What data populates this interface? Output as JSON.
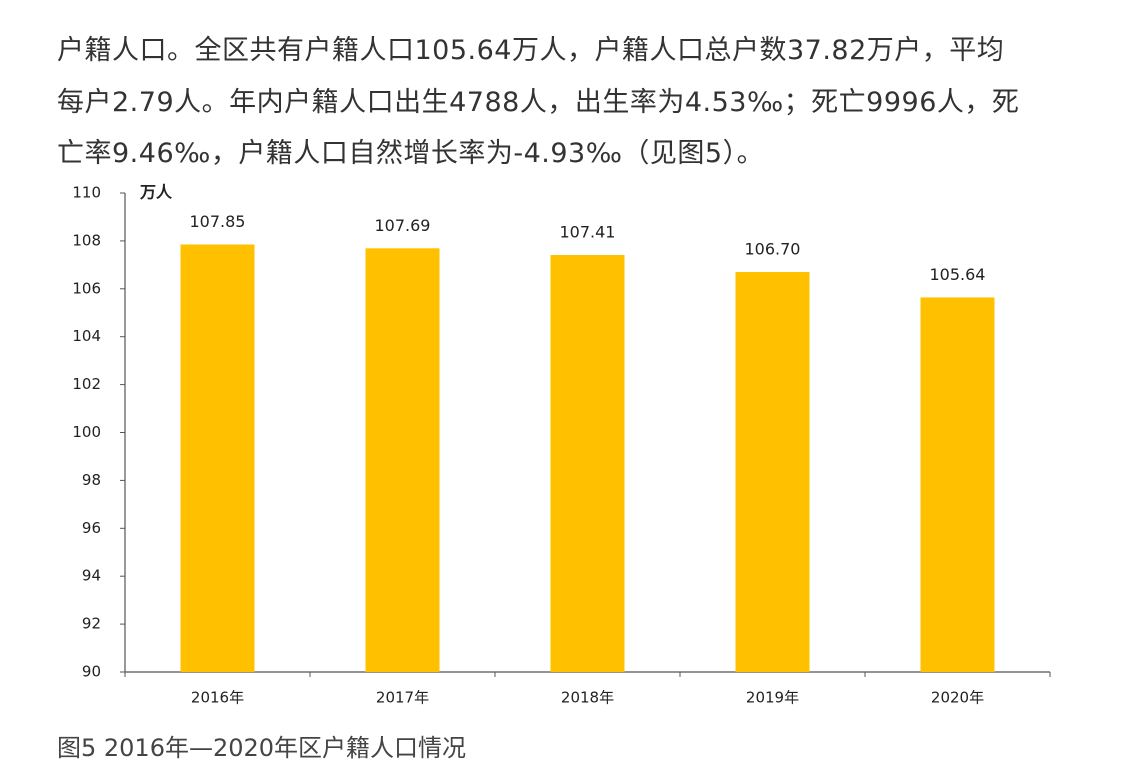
{
  "paragraph_lines": [
    "户籍人口。全区共有户籍人口105.64万人，户籍人口总户数37.82万户，平均",
    "每户2.79人。年内户籍人口出生4788人，出生率为4.53‰；死亡9996人，死",
    "亡率9.46‰，户籍人口自然增长率为-4.93‰（见图5）。"
  ],
  "chart_data": {
    "type": "bar",
    "y_unit_label": "万人",
    "categories": [
      "2016年",
      "2017年",
      "2018年",
      "2019年",
      "2020年"
    ],
    "values": [
      107.85,
      107.69,
      107.41,
      106.7,
      105.64
    ],
    "value_labels": [
      "107.85",
      "107.69",
      "107.41",
      "106.70",
      "105.64"
    ],
    "color": "#FFC000",
    "ylim": [
      90,
      110
    ],
    "yticks": [
      90,
      92,
      94,
      96,
      98,
      100,
      102,
      104,
      106,
      108,
      110
    ],
    "grid": false
  },
  "caption": "图5 2016年—2020年区户籍人口情况"
}
